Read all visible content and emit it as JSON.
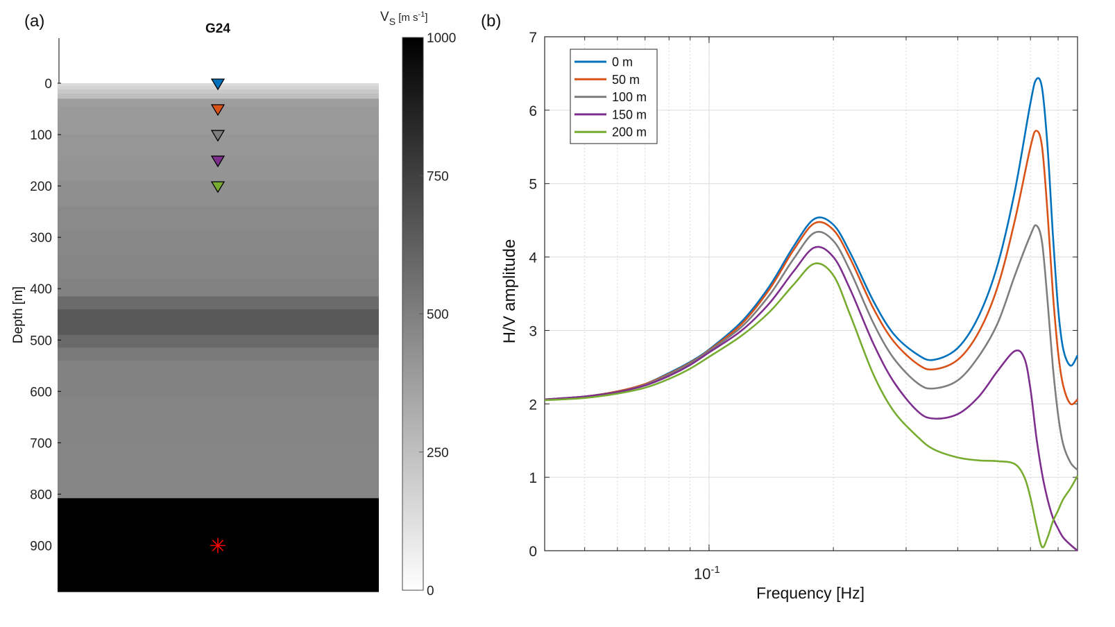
{
  "chart_data": [
    {
      "panel_label": "(a)",
      "type": "heatmap",
      "title": "G24",
      "ylabel": "Depth [m]",
      "ylim": [
        -88,
        990
      ],
      "yticks": [
        0,
        100,
        200,
        300,
        400,
        500,
        600,
        700,
        800,
        900
      ],
      "y_reversed": true,
      "colorbar": {
        "label_main": "V",
        "label_sub": "S",
        "label_unit": " [m s",
        "label_exp": "-1",
        "label_close": "]",
        "ticks": [
          0,
          250,
          500,
          750,
          1000
        ],
        "range": [
          0,
          1000
        ],
        "colormap": "white-to-black"
      },
      "layers": [
        {
          "top": 0,
          "bottom": 5,
          "vs": 140
        },
        {
          "top": 5,
          "bottom": 12,
          "vs": 170
        },
        {
          "top": 12,
          "bottom": 20,
          "vs": 210
        },
        {
          "top": 20,
          "bottom": 30,
          "vs": 250
        },
        {
          "top": 30,
          "bottom": 45,
          "vs": 380
        },
        {
          "top": 45,
          "bottom": 70,
          "vs": 395
        },
        {
          "top": 70,
          "bottom": 100,
          "vs": 400
        },
        {
          "top": 100,
          "bottom": 150,
          "vs": 410
        },
        {
          "top": 150,
          "bottom": 190,
          "vs": 420
        },
        {
          "top": 190,
          "bottom": 240,
          "vs": 440
        },
        {
          "top": 240,
          "bottom": 290,
          "vs": 460
        },
        {
          "top": 290,
          "bottom": 340,
          "vs": 470
        },
        {
          "top": 340,
          "bottom": 380,
          "vs": 475
        },
        {
          "top": 380,
          "bottom": 415,
          "vs": 490
        },
        {
          "top": 415,
          "bottom": 440,
          "vs": 580
        },
        {
          "top": 440,
          "bottom": 490,
          "vs": 650
        },
        {
          "top": 490,
          "bottom": 515,
          "vs": 590
        },
        {
          "top": 515,
          "bottom": 540,
          "vs": 520
        },
        {
          "top": 540,
          "bottom": 610,
          "vs": 490
        },
        {
          "top": 610,
          "bottom": 700,
          "vs": 480
        },
        {
          "top": 700,
          "bottom": 808,
          "vs": 475
        },
        {
          "top": 808,
          "bottom": 990,
          "vs": 1000
        }
      ],
      "stations": [
        {
          "depth": 0,
          "color": "#0072BD"
        },
        {
          "depth": 50,
          "color": "#D95319"
        },
        {
          "depth": 100,
          "color": "#7E7E7E"
        },
        {
          "depth": 150,
          "color": "#7E2F8E"
        },
        {
          "depth": 200,
          "color": "#77AC30"
        }
      ],
      "source": {
        "depth": 900,
        "color": "#ff0000"
      }
    },
    {
      "panel_label": "(b)",
      "type": "line",
      "xlabel": "Frequency [Hz]",
      "ylabel": "H/V amplitude",
      "xscale": "log",
      "xlim": [
        0.04,
        0.78
      ],
      "ylim": [
        0,
        7
      ],
      "yticks": [
        0,
        1,
        2,
        3,
        4,
        5,
        6,
        7
      ],
      "xtick_base": "10",
      "xtick_exp": "-1",
      "grid": true,
      "legend_position": "top-left",
      "series": [
        {
          "name": "0 m",
          "color": "#0072BD",
          "x": [
            0.04,
            0.05,
            0.06,
            0.07,
            0.08,
            0.09,
            0.1,
            0.12,
            0.14,
            0.16,
            0.18,
            0.2,
            0.22,
            0.25,
            0.28,
            0.32,
            0.35,
            0.4,
            0.45,
            0.5,
            0.55,
            0.6,
            0.62,
            0.64,
            0.66,
            0.68,
            0.7,
            0.72,
            0.75,
            0.78
          ],
          "y": [
            2.06,
            2.1,
            2.17,
            2.27,
            2.42,
            2.57,
            2.74,
            3.12,
            3.6,
            4.14,
            4.52,
            4.44,
            4.05,
            3.4,
            2.95,
            2.67,
            2.6,
            2.76,
            3.2,
            3.9,
            4.9,
            6.1,
            6.42,
            6.3,
            5.5,
            4.3,
            3.3,
            2.75,
            2.52,
            2.66
          ]
        },
        {
          "name": "50 m",
          "color": "#D95319",
          "x": [
            0.04,
            0.05,
            0.06,
            0.07,
            0.08,
            0.09,
            0.1,
            0.12,
            0.14,
            0.16,
            0.18,
            0.2,
            0.22,
            0.25,
            0.28,
            0.32,
            0.35,
            0.4,
            0.45,
            0.5,
            0.55,
            0.6,
            0.62,
            0.64,
            0.66,
            0.68,
            0.7,
            0.72,
            0.75,
            0.78
          ],
          "y": [
            2.06,
            2.1,
            2.17,
            2.27,
            2.41,
            2.56,
            2.73,
            3.09,
            3.56,
            4.09,
            4.46,
            4.37,
            3.97,
            3.3,
            2.85,
            2.54,
            2.47,
            2.6,
            2.98,
            3.6,
            4.5,
            5.5,
            5.72,
            5.5,
            4.6,
            3.5,
            2.7,
            2.25,
            2.0,
            2.06
          ]
        },
        {
          "name": "100 m",
          "color": "#7E7E7E",
          "x": [
            0.04,
            0.05,
            0.06,
            0.07,
            0.08,
            0.09,
            0.1,
            0.12,
            0.14,
            0.16,
            0.18,
            0.2,
            0.22,
            0.25,
            0.28,
            0.32,
            0.35,
            0.4,
            0.45,
            0.5,
            0.55,
            0.6,
            0.62,
            0.64,
            0.66,
            0.68,
            0.7,
            0.72,
            0.75,
            0.78
          ],
          "y": [
            2.06,
            2.1,
            2.16,
            2.26,
            2.4,
            2.55,
            2.72,
            3.05,
            3.48,
            3.97,
            4.33,
            4.22,
            3.8,
            3.1,
            2.62,
            2.28,
            2.21,
            2.32,
            2.65,
            3.1,
            3.75,
            4.3,
            4.43,
            4.2,
            3.4,
            2.5,
            1.85,
            1.45,
            1.2,
            1.1
          ]
        },
        {
          "name": "150 m",
          "color": "#7E2F8E",
          "x": [
            0.04,
            0.05,
            0.06,
            0.07,
            0.08,
            0.09,
            0.1,
            0.12,
            0.14,
            0.16,
            0.18,
            0.2,
            0.22,
            0.25,
            0.28,
            0.32,
            0.35,
            0.4,
            0.45,
            0.5,
            0.55,
            0.58,
            0.6,
            0.62,
            0.64,
            0.66,
            0.68,
            0.7,
            0.72,
            0.75,
            0.78
          ],
          "y": [
            2.06,
            2.1,
            2.16,
            2.25,
            2.38,
            2.53,
            2.7,
            3.0,
            3.37,
            3.8,
            4.13,
            4.0,
            3.55,
            2.82,
            2.3,
            1.9,
            1.8,
            1.86,
            2.1,
            2.45,
            2.72,
            2.62,
            2.2,
            1.55,
            1.05,
            0.7,
            0.45,
            0.3,
            0.18,
            0.08,
            0.0
          ]
        },
        {
          "name": "200 m",
          "color": "#77AC30",
          "x": [
            0.04,
            0.05,
            0.06,
            0.07,
            0.08,
            0.09,
            0.1,
            0.12,
            0.14,
            0.16,
            0.18,
            0.2,
            0.22,
            0.25,
            0.28,
            0.32,
            0.35,
            0.4,
            0.45,
            0.5,
            0.55,
            0.58,
            0.6,
            0.62,
            0.64,
            0.66,
            0.68,
            0.7,
            0.72,
            0.75,
            0.78
          ],
          "y": [
            2.05,
            2.08,
            2.14,
            2.22,
            2.34,
            2.48,
            2.64,
            2.93,
            3.25,
            3.62,
            3.91,
            3.75,
            3.2,
            2.4,
            1.9,
            1.55,
            1.38,
            1.27,
            1.23,
            1.22,
            1.18,
            1.0,
            0.72,
            0.35,
            0.05,
            0.18,
            0.4,
            0.55,
            0.7,
            0.85,
            1.02
          ]
        }
      ]
    }
  ]
}
